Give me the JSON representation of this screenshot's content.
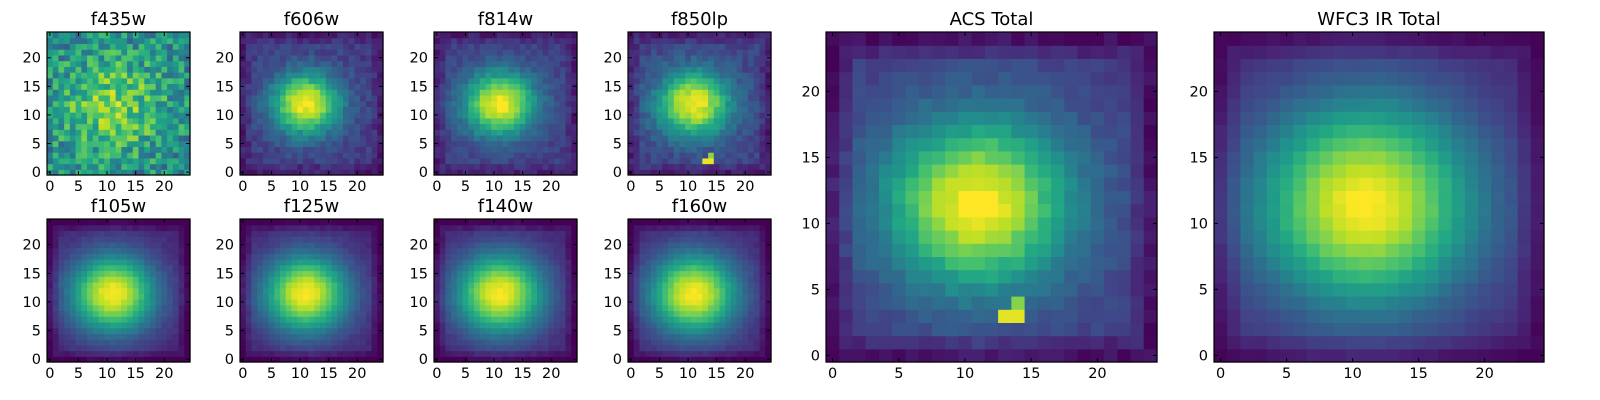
{
  "chart_data": [
    {
      "type": "heatmap",
      "title": "f435w",
      "grid": false,
      "colormap": "viridis",
      "xlim": [
        0,
        24
      ],
      "ylim": [
        0,
        24
      ],
      "xticks": [
        0,
        5,
        10,
        15,
        20
      ],
      "yticks": [
        0,
        5,
        10,
        15,
        20
      ],
      "xticklabels": [
        "0",
        "5",
        "10",
        "15",
        "20"
      ],
      "yticklabels": [
        "0",
        "5",
        "10",
        "15",
        "20"
      ],
      "image": {
        "size": 25,
        "center_x": 11,
        "center_y": 11.5,
        "sigma_x": 7,
        "sigma_y": 6.5,
        "peak": 0.78,
        "background": 0.45,
        "noise": 0.42,
        "edge_dim": 0.0,
        "seed": 1,
        "hot_pixel": null
      }
    },
    {
      "type": "heatmap",
      "title": "f606w",
      "grid": false,
      "colormap": "viridis",
      "xlim": [
        0,
        24
      ],
      "ylim": [
        0,
        24
      ],
      "xticks": [
        0,
        5,
        10,
        15,
        20
      ],
      "yticks": [
        0,
        5,
        10,
        15,
        20
      ],
      "xticklabels": [
        "0",
        "5",
        "10",
        "15",
        "20"
      ],
      "yticklabels": [
        "0",
        "5",
        "10",
        "15",
        "20"
      ],
      "image": {
        "size": 25,
        "center_x": 11,
        "center_y": 12,
        "sigma_x": 4.2,
        "sigma_y": 3.8,
        "peak": 1.0,
        "background": 0.18,
        "noise": 0.12,
        "edge_dim": 0.1,
        "seed": 2,
        "hot_pixel": null
      }
    },
    {
      "type": "heatmap",
      "title": "f814w",
      "grid": false,
      "colormap": "viridis",
      "xlim": [
        0,
        24
      ],
      "ylim": [
        0,
        24
      ],
      "xticks": [
        0,
        5,
        10,
        15,
        20
      ],
      "yticks": [
        0,
        5,
        10,
        15,
        20
      ],
      "xticklabels": [
        "0",
        "5",
        "10",
        "15",
        "20"
      ],
      "yticklabels": [
        "0",
        "5",
        "10",
        "15",
        "20"
      ],
      "image": {
        "size": 25,
        "center_x": 11,
        "center_y": 12,
        "sigma_x": 4.5,
        "sigma_y": 4.0,
        "peak": 1.0,
        "background": 0.18,
        "noise": 0.1,
        "edge_dim": 0.1,
        "seed": 3,
        "hot_pixel": null
      }
    },
    {
      "type": "heatmap",
      "title": "f850lp",
      "grid": false,
      "colormap": "viridis",
      "xlim": [
        0,
        24
      ],
      "ylim": [
        0,
        24
      ],
      "xticks": [
        0,
        5,
        10,
        15,
        20
      ],
      "yticks": [
        0,
        5,
        10,
        15,
        20
      ],
      "xticklabels": [
        "0",
        "5",
        "10",
        "15",
        "20"
      ],
      "yticklabels": [
        "0",
        "5",
        "10",
        "15",
        "20"
      ],
      "image": {
        "size": 25,
        "center_x": 11,
        "center_y": 12,
        "sigma_x": 4.5,
        "sigma_y": 4.0,
        "peak": 1.0,
        "background": 0.2,
        "noise": 0.12,
        "edge_dim": 0.12,
        "seed": 4,
        "hot_pixel": {
          "x": 13,
          "y": 2,
          "value": 0.97
        }
      }
    },
    {
      "type": "heatmap",
      "title": "f105w",
      "grid": false,
      "colormap": "viridis",
      "xlim": [
        0,
        24
      ],
      "ylim": [
        0,
        24
      ],
      "xticks": [
        0,
        5,
        10,
        15,
        20
      ],
      "yticks": [
        0,
        5,
        10,
        15,
        20
      ],
      "xticklabels": [
        "0",
        "5",
        "10",
        "15",
        "20"
      ],
      "yticklabels": [
        "0",
        "5",
        "10",
        "15",
        "20"
      ],
      "image": {
        "size": 25,
        "center_x": 11,
        "center_y": 11.5,
        "sigma_x": 5.3,
        "sigma_y": 4.8,
        "peak": 1.0,
        "background": 0.1,
        "noise": 0.04,
        "edge_dim": 0.12,
        "seed": 5,
        "hot_pixel": null
      }
    },
    {
      "type": "heatmap",
      "title": "f125w",
      "grid": false,
      "colormap": "viridis",
      "xlim": [
        0,
        24
      ],
      "ylim": [
        0,
        24
      ],
      "xticks": [
        0,
        5,
        10,
        15,
        20
      ],
      "yticks": [
        0,
        5,
        10,
        15,
        20
      ],
      "xticklabels": [
        "0",
        "5",
        "10",
        "15",
        "20"
      ],
      "yticklabels": [
        "0",
        "5",
        "10",
        "15",
        "20"
      ],
      "image": {
        "size": 25,
        "center_x": 11,
        "center_y": 11.5,
        "sigma_x": 5.3,
        "sigma_y": 4.8,
        "peak": 1.0,
        "background": 0.1,
        "noise": 0.04,
        "edge_dim": 0.12,
        "seed": 6,
        "hot_pixel": null
      }
    },
    {
      "type": "heatmap",
      "title": "f140w",
      "grid": false,
      "colormap": "viridis",
      "xlim": [
        0,
        24
      ],
      "ylim": [
        0,
        24
      ],
      "xticks": [
        0,
        5,
        10,
        15,
        20
      ],
      "yticks": [
        0,
        5,
        10,
        15,
        20
      ],
      "xticklabels": [
        "0",
        "5",
        "10",
        "15",
        "20"
      ],
      "yticklabels": [
        "0",
        "5",
        "10",
        "15",
        "20"
      ],
      "image": {
        "size": 25,
        "center_x": 11,
        "center_y": 11.5,
        "sigma_x": 5.5,
        "sigma_y": 5.0,
        "peak": 1.0,
        "background": 0.1,
        "noise": 0.04,
        "edge_dim": 0.12,
        "seed": 7,
        "hot_pixel": null
      }
    },
    {
      "type": "heatmap",
      "title": "f160w",
      "grid": false,
      "colormap": "viridis",
      "xlim": [
        0,
        24
      ],
      "ylim": [
        0,
        24
      ],
      "xticks": [
        0,
        5,
        10,
        15,
        20
      ],
      "yticks": [
        0,
        5,
        10,
        15,
        20
      ],
      "xticklabels": [
        "0",
        "5",
        "10",
        "15",
        "20"
      ],
      "yticklabels": [
        "0",
        "5",
        "10",
        "15",
        "20"
      ],
      "image": {
        "size": 25,
        "center_x": 11,
        "center_y": 11.5,
        "sigma_x": 5.5,
        "sigma_y": 5.0,
        "peak": 1.0,
        "background": 0.1,
        "noise": 0.04,
        "edge_dim": 0.12,
        "seed": 8,
        "hot_pixel": null
      }
    },
    {
      "type": "heatmap",
      "title": "ACS Total",
      "grid": false,
      "colormap": "viridis",
      "xlim": [
        0,
        24
      ],
      "ylim": [
        0,
        24
      ],
      "xticks": [
        0,
        5,
        10,
        15,
        20
      ],
      "yticks": [
        0,
        5,
        10,
        15,
        20
      ],
      "xticklabels": [
        "0",
        "5",
        "10",
        "15",
        "20"
      ],
      "yticklabels": [
        "0",
        "5",
        "10",
        "15",
        "20"
      ],
      "image": {
        "size": 25,
        "center_x": 11,
        "center_y": 11.5,
        "sigma_x": 5.0,
        "sigma_y": 4.6,
        "peak": 1.0,
        "background": 0.18,
        "noise": 0.07,
        "edge_dim": 0.15,
        "seed": 9,
        "hot_pixel": {
          "x": 13,
          "y": 3,
          "value": 0.96
        }
      }
    },
    {
      "type": "heatmap",
      "title": "WFC3 IR Total",
      "grid": false,
      "colormap": "viridis",
      "xlim": [
        0,
        24
      ],
      "ylim": [
        0,
        24
      ],
      "xticks": [
        0,
        5,
        10,
        15,
        20
      ],
      "yticks": [
        0,
        5,
        10,
        15,
        20
      ],
      "xticklabels": [
        "0",
        "5",
        "10",
        "15",
        "20"
      ],
      "yticklabels": [
        "0",
        "5",
        "10",
        "15",
        "20"
      ],
      "image": {
        "size": 25,
        "center_x": 11,
        "center_y": 11.5,
        "sigma_x": 6.0,
        "sigma_y": 5.6,
        "peak": 1.0,
        "background": 0.1,
        "noise": 0.025,
        "edge_dim": 0.1,
        "seed": 10,
        "hot_pixel": null
      }
    }
  ]
}
